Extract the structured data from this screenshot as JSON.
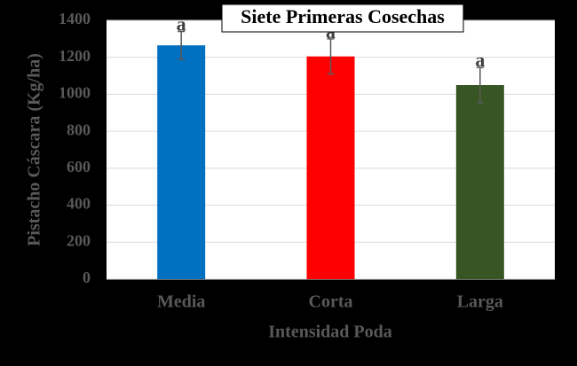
{
  "chart_data": {
    "type": "bar",
    "title": "Siete Primeras Cosechas",
    "x_label": "Intensidad Poda",
    "y_label": "Pistacho Cáscara (Kg/ha)",
    "categories": [
      "Media",
      "Corta",
      "Larga"
    ],
    "values": [
      1265,
      1205,
      1050
    ],
    "errors": [
      75,
      95,
      95
    ],
    "significance": [
      "a",
      "a",
      "a"
    ],
    "colors": [
      "#0070c0",
      "#ff0000",
      "#375623"
    ],
    "ylim": [
      0,
      1400
    ],
    "yticks": [
      0,
      200,
      400,
      600,
      800,
      1000,
      1200,
      1400
    ],
    "grid": true
  }
}
